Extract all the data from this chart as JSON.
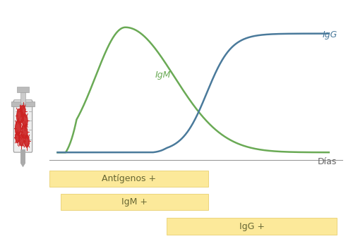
{
  "background_color": "#ffffff",
  "plot_bg_color": "#ffffff",
  "igm_color": "#6aaa55",
  "igg_color": "#4a7a9b",
  "axis_color": "#999999",
  "label_dias": "Días",
  "label_igm": "IgM",
  "label_igg": "IgG",
  "bar_color": "#fce99a",
  "bar_edge_color": "#e8d070",
  "bar_labels": [
    "Antígenos +",
    "IgM +",
    "IgG +"
  ],
  "label_fontsize": 9,
  "bar_label_fontsize": 9,
  "dias_fontsize": 9
}
